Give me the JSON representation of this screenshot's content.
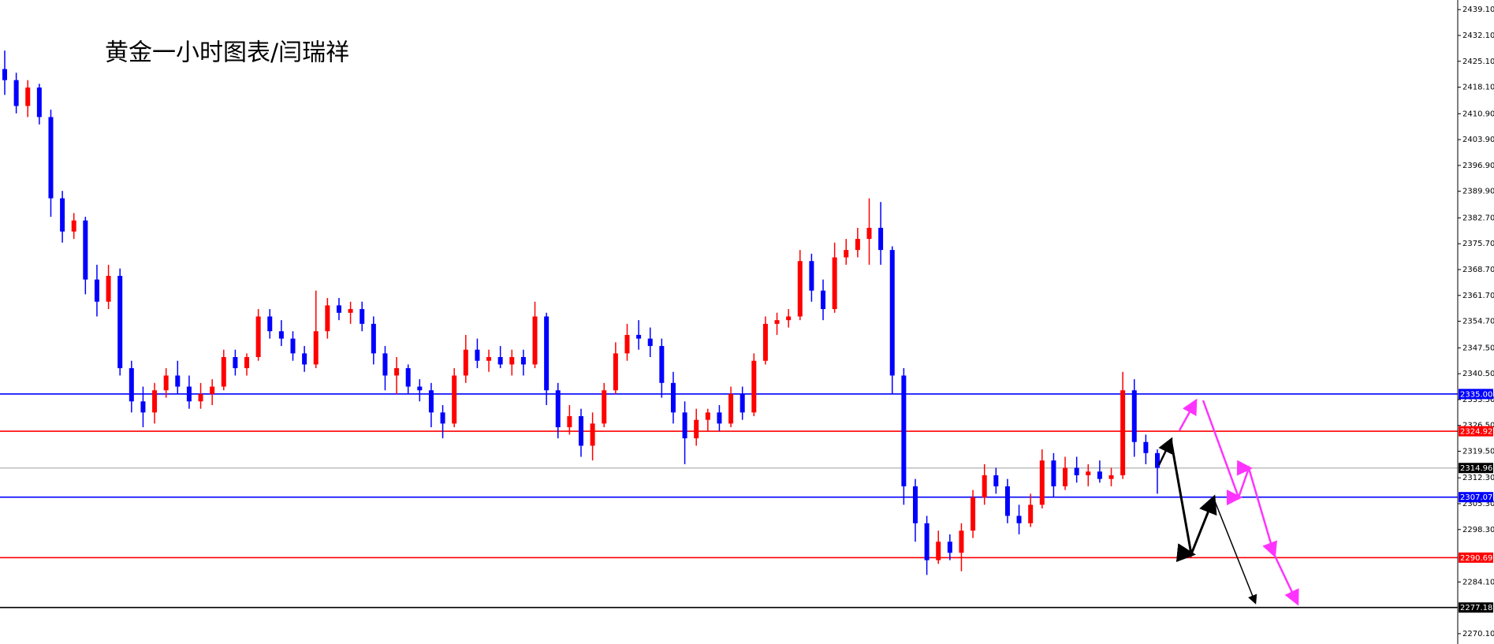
{
  "chart_data": {
    "type": "candlestick",
    "title": "黄金一小时图表/闫瑞祥",
    "up_color": "#ff0000",
    "down_color": "#0000ff",
    "ylim": [
      2267.3,
      2441.7
    ],
    "yticks": [
      {
        "value": 2439.1,
        "label": "2439.10"
      },
      {
        "value": 2432.1,
        "label": "2432.10"
      },
      {
        "value": 2425.1,
        "label": "2425.10"
      },
      {
        "value": 2418.1,
        "label": "2418.10"
      },
      {
        "value": 2410.9,
        "label": "2410.90"
      },
      {
        "value": 2403.9,
        "label": "2403.90"
      },
      {
        "value": 2396.9,
        "label": "2396.90"
      },
      {
        "value": 2389.9,
        "label": "2389.90"
      },
      {
        "value": 2382.7,
        "label": "2382.70"
      },
      {
        "value": 2375.7,
        "label": "2375.70"
      },
      {
        "value": 2368.7,
        "label": "2368.70"
      },
      {
        "value": 2361.7,
        "label": "2361.70"
      },
      {
        "value": 2354.7,
        "label": "2354.70"
      },
      {
        "value": 2347.5,
        "label": "2347.50"
      },
      {
        "value": 2340.5,
        "label": "2340.50"
      },
      {
        "value": 2333.5,
        "label": "2333.50"
      },
      {
        "value": 2326.5,
        "label": "2326.50"
      },
      {
        "value": 2319.5,
        "label": "2319.50"
      },
      {
        "value": 2312.3,
        "label": "2312.30"
      },
      {
        "value": 2305.3,
        "label": "2305.30"
      },
      {
        "value": 2298.3,
        "label": "2298.30"
      },
      {
        "value": 2284.1,
        "label": "2284.10"
      },
      {
        "value": 2270.1,
        "label": "2270.10"
      }
    ],
    "levels": [
      {
        "value": 2335,
        "label": "2335.00",
        "color": "#0000ff"
      },
      {
        "value": 2324.92,
        "label": "2324.92",
        "color": "#ff0000"
      },
      {
        "value": 2314.96,
        "label": "2314.96",
        "color": "#c0c0c0",
        "label_color": "#000000"
      },
      {
        "value": 2307.07,
        "label": "2307.07",
        "color": "#0000ff"
      },
      {
        "value": 2290.69,
        "label": "2290.69",
        "color": "#ff0000"
      },
      {
        "value": 2277.18,
        "label": "2277.18",
        "color": "#000000"
      }
    ],
    "ohlc": [
      [
        2423,
        2428,
        2416,
        2420
      ],
      [
        2420,
        2422,
        2411,
        2413
      ],
      [
        2413,
        2420,
        2410,
        2418
      ],
      [
        2418,
        2419,
        2408,
        2410
      ],
      [
        2410,
        2412,
        2383,
        2388
      ],
      [
        2388,
        2390,
        2376,
        2379
      ],
      [
        2379,
        2384,
        2377,
        2382
      ],
      [
        2382,
        2383,
        2362,
        2366
      ],
      [
        2366,
        2370,
        2356,
        2360
      ],
      [
        2360,
        2370,
        2358,
        2367
      ],
      [
        2367,
        2369,
        2340,
        2342
      ],
      [
        2342,
        2344,
        2330,
        2333
      ],
      [
        2333,
        2337,
        2326,
        2330
      ],
      [
        2330,
        2338,
        2327,
        2336
      ],
      [
        2336,
        2342,
        2334,
        2340
      ],
      [
        2340,
        2344,
        2335,
        2337
      ],
      [
        2337,
        2340,
        2331,
        2333
      ],
      [
        2333,
        2338,
        2331,
        2335
      ],
      [
        2335,
        2339,
        2332,
        2337
      ],
      [
        2337,
        2347,
        2336,
        2345
      ],
      [
        2345,
        2347,
        2340,
        2342
      ],
      [
        2342,
        2346,
        2340,
        2345
      ],
      [
        2345,
        2358,
        2344,
        2356
      ],
      [
        2356,
        2358,
        2350,
        2352
      ],
      [
        2352,
        2355,
        2348,
        2350
      ],
      [
        2350,
        2352,
        2344,
        2346
      ],
      [
        2346,
        2348,
        2341,
        2343
      ],
      [
        2343,
        2363,
        2342,
        2352
      ],
      [
        2352,
        2361,
        2350,
        2359
      ],
      [
        2359,
        2361,
        2355,
        2357
      ],
      [
        2357,
        2360,
        2354,
        2358
      ],
      [
        2358,
        2360,
        2352,
        2354
      ],
      [
        2354,
        2356,
        2343,
        2346
      ],
      [
        2346,
        2348,
        2336,
        2340
      ],
      [
        2340,
        2345,
        2335,
        2342
      ],
      [
        2342,
        2343,
        2335,
        2337
      ],
      [
        2337,
        2339,
        2333,
        2336
      ],
      [
        2336,
        2338,
        2326,
        2330
      ],
      [
        2330,
        2332,
        2323,
        2327
      ],
      [
        2327,
        2342,
        2326,
        2340
      ],
      [
        2340,
        2351,
        2338,
        2347
      ],
      [
        2347,
        2350,
        2342,
        2344
      ],
      [
        2344,
        2347,
        2341,
        2345
      ],
      [
        2345,
        2348,
        2342,
        2343
      ],
      [
        2343,
        2347,
        2340,
        2345
      ],
      [
        2345,
        2347,
        2340,
        2343
      ],
      [
        2343,
        2360,
        2342,
        2356
      ],
      [
        2356,
        2357,
        2332,
        2336
      ],
      [
        2336,
        2338,
        2323,
        2326
      ],
      [
        2326,
        2332,
        2324,
        2329
      ],
      [
        2329,
        2331,
        2318,
        2321
      ],
      [
        2321,
        2330,
        2317,
        2327
      ],
      [
        2327,
        2338,
        2326,
        2336
      ],
      [
        2336,
        2349,
        2335,
        2346
      ],
      [
        2346,
        2354,
        2344,
        2351
      ],
      [
        2351,
        2355,
        2347,
        2350
      ],
      [
        2350,
        2353,
        2345,
        2348
      ],
      [
        2348,
        2350,
        2334,
        2338
      ],
      [
        2338,
        2341,
        2327,
        2330
      ],
      [
        2330,
        2333,
        2316,
        2323
      ],
      [
        2323,
        2331,
        2321,
        2328
      ],
      [
        2328,
        2331,
        2325,
        2330
      ],
      [
        2330,
        2332,
        2325,
        2327
      ],
      [
        2327,
        2337,
        2326,
        2335
      ],
      [
        2335,
        2337,
        2328,
        2330
      ],
      [
        2330,
        2346,
        2329,
        2344
      ],
      [
        2344,
        2356,
        2343,
        2354
      ],
      [
        2354,
        2357,
        2351,
        2355
      ],
      [
        2355,
        2358,
        2353,
        2356
      ],
      [
        2356,
        2374,
        2355,
        2371
      ],
      [
        2371,
        2373,
        2360,
        2363
      ],
      [
        2363,
        2366,
        2355,
        2358
      ],
      [
        2358,
        2376,
        2357,
        2372
      ],
      [
        2372,
        2377,
        2370,
        2374
      ],
      [
        2374,
        2380,
        2372,
        2377
      ],
      [
        2377,
        2388,
        2370,
        2380
      ],
      [
        2380,
        2387,
        2370,
        2374
      ],
      [
        2374,
        2375,
        2335,
        2340
      ],
      [
        2340,
        2342,
        2305,
        2310
      ],
      [
        2310,
        2312,
        2295,
        2300
      ],
      [
        2300,
        2302,
        2286,
        2290
      ],
      [
        2290,
        2298,
        2289,
        2295
      ],
      [
        2295,
        2297,
        2290,
        2292
      ],
      [
        2292,
        2300,
        2287,
        2298
      ],
      [
        2298,
        2309,
        2296,
        2307
      ],
      [
        2307,
        2316,
        2305,
        2313
      ],
      [
        2313,
        2315,
        2308,
        2310
      ],
      [
        2310,
        2312,
        2300,
        2302
      ],
      [
        2302,
        2305,
        2297,
        2300
      ],
      [
        2300,
        2308,
        2299,
        2305
      ],
      [
        2305,
        2320,
        2304,
        2317
      ],
      [
        2317,
        2319,
        2307,
        2310
      ],
      [
        2310,
        2318,
        2309,
        2315
      ],
      [
        2315,
        2318,
        2311,
        2313
      ],
      [
        2313,
        2316,
        2310,
        2314
      ],
      [
        2314,
        2317,
        2311,
        2312
      ],
      [
        2312,
        2315,
        2310,
        2313
      ],
      [
        2313,
        2341,
        2312,
        2336
      ],
      [
        2336,
        2339,
        2318,
        2322
      ],
      [
        2322,
        2324,
        2316,
        2319
      ],
      [
        2319,
        2320,
        2308,
        2315
      ]
    ]
  }
}
